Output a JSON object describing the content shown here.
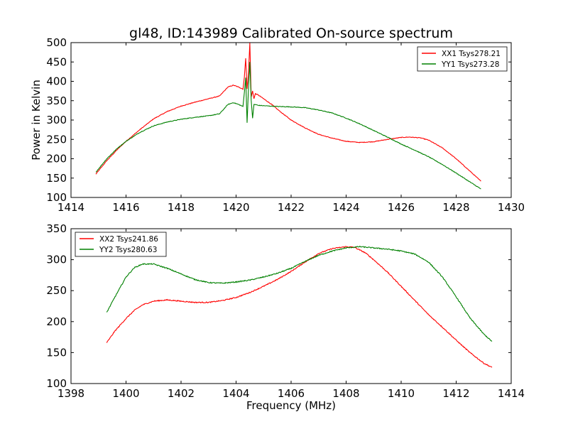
{
  "chart_data": [
    {
      "type": "line",
      "title": "gl48, ID:143989 Calibrated On-source spectrum",
      "xlabel": "",
      "ylabel": "Power in Kelvin",
      "xlim": [
        1414,
        1430
      ],
      "ylim": [
        100,
        500
      ],
      "xticks": [
        1414,
        1416,
        1418,
        1420,
        1422,
        1424,
        1426,
        1428,
        1430
      ],
      "yticks": [
        100,
        150,
        200,
        250,
        300,
        350,
        400,
        450,
        500
      ],
      "grid": false,
      "legend_position": "top-right",
      "series": [
        {
          "name": "XX1 Tsys278.21",
          "color": "#ff0000",
          "x": [
            1414.9,
            1415.3,
            1415.7,
            1416.0,
            1416.5,
            1417.0,
            1417.5,
            1418.0,
            1418.5,
            1419.0,
            1419.4,
            1419.7,
            1419.9,
            1420.1,
            1420.25,
            1420.3,
            1420.35,
            1420.4,
            1420.45,
            1420.5,
            1420.55,
            1420.6,
            1420.65,
            1420.7,
            1420.8,
            1421.0,
            1421.3,
            1421.6,
            1422.0,
            1422.5,
            1423.0,
            1423.5,
            1424.0,
            1424.5,
            1425.0,
            1425.5,
            1426.0,
            1426.3,
            1426.7,
            1427.0,
            1427.5,
            1428.0,
            1428.5,
            1428.9
          ],
          "y": [
            160,
            195,
            225,
            245,
            275,
            303,
            322,
            336,
            346,
            355,
            362,
            385,
            390,
            385,
            380,
            410,
            460,
            380,
            420,
            500,
            360,
            375,
            355,
            368,
            365,
            355,
            340,
            322,
            300,
            280,
            263,
            253,
            245,
            242,
            244,
            250,
            255,
            256,
            254,
            248,
            228,
            200,
            168,
            142
          ]
        },
        {
          "name": "YY1 Tsys273.28",
          "color": "#008000",
          "x": [
            1414.9,
            1415.3,
            1415.7,
            1416.0,
            1416.5,
            1417.0,
            1417.5,
            1418.0,
            1418.5,
            1419.0,
            1419.4,
            1419.7,
            1419.9,
            1420.1,
            1420.25,
            1420.3,
            1420.35,
            1420.4,
            1420.45,
            1420.5,
            1420.55,
            1420.6,
            1420.65,
            1420.7,
            1420.8,
            1421.0,
            1421.5,
            1422.0,
            1422.5,
            1423.0,
            1423.5,
            1424.0,
            1424.5,
            1425.0,
            1425.5,
            1426.0,
            1426.5,
            1427.0,
            1427.5,
            1428.0,
            1428.5,
            1428.9
          ],
          "y": [
            165,
            200,
            228,
            245,
            268,
            285,
            295,
            302,
            307,
            311,
            316,
            340,
            345,
            340,
            335,
            370,
            410,
            293,
            380,
            450,
            350,
            305,
            340,
            340,
            338,
            337,
            335,
            334,
            332,
            326,
            318,
            305,
            290,
            273,
            256,
            238,
            222,
            205,
            185,
            163,
            140,
            122
          ]
        }
      ]
    },
    {
      "type": "line",
      "title": "",
      "xlabel": "Frequency (MHz)",
      "ylabel": "",
      "xlim": [
        1398,
        1414
      ],
      "ylim": [
        100,
        350
      ],
      "xticks": [
        1398,
        1400,
        1402,
        1404,
        1406,
        1408,
        1410,
        1412,
        1414
      ],
      "yticks": [
        100,
        150,
        200,
        250,
        300,
        350
      ],
      "grid": false,
      "legend_position": "top-left",
      "series": [
        {
          "name": "XX2 Tsys241.86",
          "color": "#ff0000",
          "x": [
            1399.3,
            1399.6,
            1400.0,
            1400.3,
            1400.6,
            1401.0,
            1401.5,
            1402.0,
            1402.5,
            1403.0,
            1403.5,
            1404.0,
            1404.5,
            1405.0,
            1405.5,
            1406.0,
            1406.5,
            1407.0,
            1407.5,
            1408.0,
            1408.3,
            1408.7,
            1409.0,
            1409.5,
            1410.0,
            1410.5,
            1411.0,
            1411.5,
            1412.0,
            1412.5,
            1413.0,
            1413.3
          ],
          "y": [
            166,
            185,
            205,
            218,
            227,
            233,
            235,
            233,
            231,
            231,
            234,
            239,
            247,
            257,
            268,
            281,
            296,
            310,
            318,
            321,
            320,
            311,
            300,
            280,
            257,
            234,
            211,
            191,
            170,
            150,
            133,
            126
          ]
        },
        {
          "name": "YY2 Tsys280.63",
          "color": "#008000",
          "x": [
            1399.3,
            1399.6,
            1400.0,
            1400.3,
            1400.6,
            1401.0,
            1401.5,
            1402.0,
            1402.5,
            1403.0,
            1403.5,
            1404.0,
            1404.5,
            1405.0,
            1405.5,
            1406.0,
            1406.5,
            1407.0,
            1407.5,
            1408.0,
            1408.5,
            1409.0,
            1409.5,
            1410.0,
            1410.5,
            1411.0,
            1411.5,
            1412.0,
            1412.5,
            1413.0,
            1413.3
          ],
          "y": [
            215,
            240,
            272,
            287,
            293,
            293,
            286,
            277,
            268,
            263,
            262,
            264,
            267,
            272,
            278,
            286,
            297,
            307,
            314,
            319,
            321,
            319,
            317,
            314,
            309,
            296,
            272,
            240,
            206,
            180,
            168
          ]
        }
      ]
    }
  ]
}
